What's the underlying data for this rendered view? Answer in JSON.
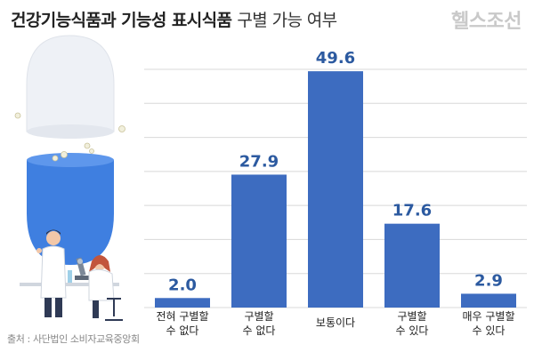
{
  "title": {
    "bold": "건강기능식품과 기능성 표시식품",
    "light": "구별 가능 여부"
  },
  "brand": "헬스조선",
  "source": "출처 : 사단법인 소비자교육중앙회",
  "colors": {
    "bar": "#3d6cc0",
    "value_label": "#2c5aa0",
    "gridline": "#d8d8d8",
    "capsule_blue": "#3f7fe0",
    "capsule_white": "#f2f4f8"
  },
  "chart_data": {
    "type": "bar",
    "categories": [
      [
        "전혀 구별할",
        "수 없다"
      ],
      [
        "구별할",
        "수 없다"
      ],
      [
        "보통이다"
      ],
      [
        "구별할",
        "수 있다"
      ],
      [
        "매우 구별할",
        "수 있다"
      ]
    ],
    "values": [
      2.0,
      27.9,
      49.6,
      17.6,
      2.9
    ],
    "value_labels": [
      "2.0",
      "27.9",
      "49.6",
      "17.6",
      "2.9"
    ],
    "ylim": [
      0,
      50
    ],
    "grid": true
  }
}
